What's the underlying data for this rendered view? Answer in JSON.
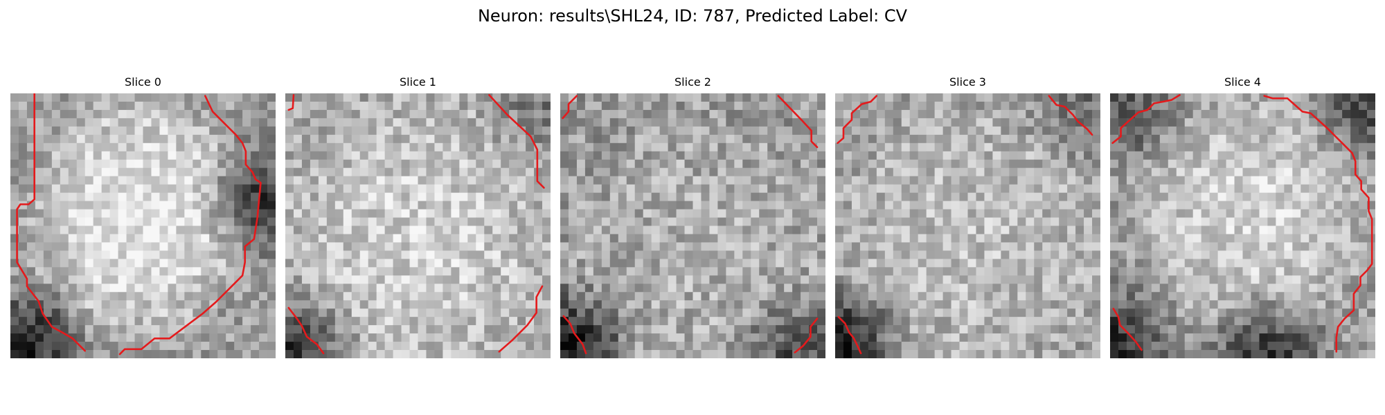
{
  "figure": {
    "title": "Neuron: results\\SHL24, ID: 787, Predicted Label: CV"
  },
  "image": {
    "description": "Five grayscale microscopy slices of a neuron with red contour overlay",
    "contour_color": "#e41a1c",
    "colormap": "gray"
  },
  "panels": [
    {
      "title": "Slice 0"
    },
    {
      "title": "Slice 1"
    },
    {
      "title": "Slice 2"
    },
    {
      "title": "Slice 3"
    },
    {
      "title": "Slice 4"
    }
  ]
}
